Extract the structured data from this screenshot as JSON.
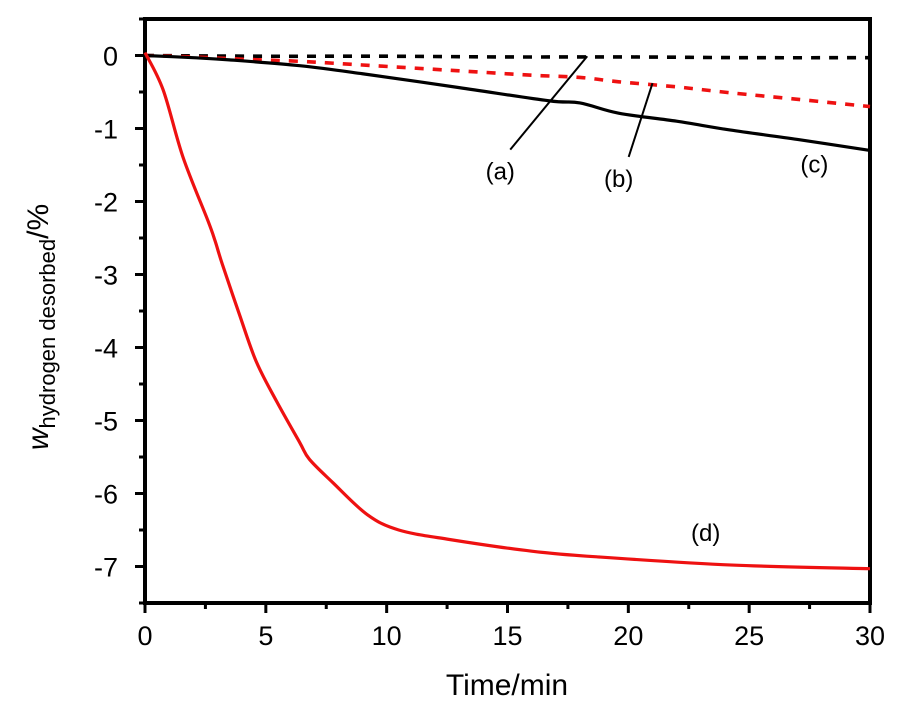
{
  "chart_data": {
    "type": "line",
    "title": "",
    "xlabel": "Time/min",
    "ylabel": {
      "main": "w",
      "subscript": "hydrogen desorbed",
      "suffix": "/%"
    },
    "xlim": [
      0,
      30
    ],
    "ylim": [
      -7.5,
      0.5
    ],
    "x_ticks": [
      0,
      5,
      10,
      15,
      20,
      25,
      30
    ],
    "x_tick_labels": [
      "0",
      "5",
      "10",
      "15",
      "20",
      "25",
      "30"
    ],
    "y_ticks": [
      0,
      -1,
      -2,
      -3,
      -4,
      -5,
      -6,
      -7
    ],
    "y_tick_labels": [
      "0",
      "-1",
      "-2",
      "-3",
      "-4",
      "-5",
      "-6",
      "-7"
    ],
    "grid": false,
    "legend": "none",
    "series": [
      {
        "name": "(a)",
        "color": "#000000",
        "style": "dashed",
        "x": [
          0,
          5,
          10,
          15,
          20,
          25,
          30
        ],
        "y": [
          0,
          -0.01,
          -0.01,
          -0.02,
          -0.02,
          -0.03,
          -0.03
        ]
      },
      {
        "name": "(b)",
        "color": "#ee1111",
        "style": "dashed",
        "x": [
          0,
          2,
          4,
          6.4,
          9,
          13,
          16,
          18,
          19.6,
          22,
          24.2,
          27,
          30
        ],
        "y": [
          0,
          -0.02,
          -0.05,
          -0.08,
          -0.13,
          -0.21,
          -0.27,
          -0.3,
          -0.36,
          -0.43,
          -0.51,
          -0.6,
          -0.7
        ]
      },
      {
        "name": "(c)",
        "color": "#000000",
        "style": "solid",
        "x": [
          0,
          2,
          3.5,
          6.4,
          9,
          13,
          16.7,
          18,
          19.6,
          22,
          24.2,
          27,
          30
        ],
        "y": [
          0,
          -0.03,
          -0.06,
          -0.14,
          -0.25,
          -0.44,
          -0.62,
          -0.65,
          -0.79,
          -0.9,
          -1.02,
          -1.15,
          -1.3
        ]
      },
      {
        "name": "(d)",
        "color": "#ee1111",
        "style": "solid",
        "x": [
          0,
          0.75,
          1.57,
          2.6,
          2.9,
          3.2,
          3.9,
          4.6,
          5.45,
          6.4,
          6.8,
          7.77,
          9.2,
          10.5,
          12.6,
          16.0,
          18.8,
          24.3,
          30
        ],
        "y": [
          0.04,
          -0.47,
          -1.39,
          -2.26,
          -2.54,
          -2.86,
          -3.54,
          -4.19,
          -4.74,
          -5.3,
          -5.53,
          -5.85,
          -6.29,
          -6.5,
          -6.63,
          -6.79,
          -6.87,
          -6.98,
          -7.03
        ]
      }
    ],
    "annotations": [
      {
        "text": "(a)",
        "x": 14.7,
        "y": -1.7,
        "point_x": 18.3,
        "point_y": -0.01,
        "leader": true
      },
      {
        "text": "(b)",
        "x": 19.6,
        "y": -1.8,
        "point_x": 21.0,
        "point_y": -0.38,
        "leader": true
      },
      {
        "text": "(c)",
        "x": 27.7,
        "y": -1.6,
        "leader": false
      },
      {
        "text": "(d)",
        "x": 23.2,
        "y": -6.65,
        "leader": false
      }
    ]
  }
}
